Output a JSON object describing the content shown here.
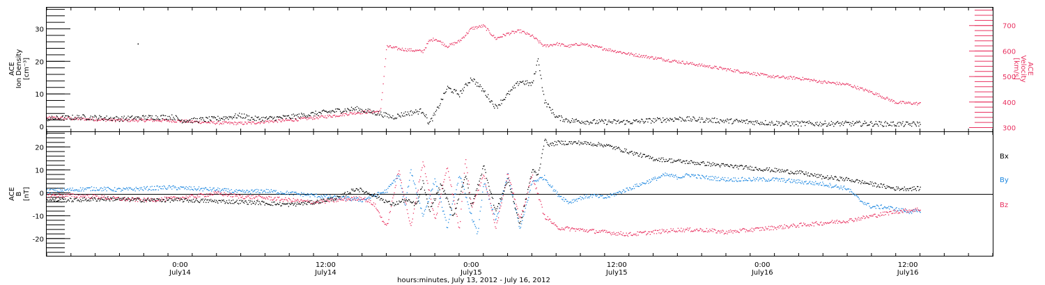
{
  "colors": {
    "black": "#000000",
    "pink": "#e8305f",
    "blue": "#1a86e0"
  },
  "xaxis": {
    "hours_range": [
      0,
      78
    ],
    "ticks": [
      {
        "hour": 11,
        "time": "0:00",
        "day": "July14"
      },
      {
        "hour": 23,
        "time": "12:00",
        "day": "July14"
      },
      {
        "hour": 35,
        "time": "0:00",
        "day": "July15"
      },
      {
        "hour": 47,
        "time": "12:00",
        "day": "July15"
      },
      {
        "hour": 59,
        "time": "0:00",
        "day": "July16"
      },
      {
        "hour": 71,
        "time": "12:00",
        "day": "July16"
      }
    ],
    "label": "hours:minutes, July 13, 2012 - July 16, 2012"
  },
  "chart_data": [
    {
      "type": "scatter",
      "panel": "top",
      "left_axis": {
        "label_lines": [
          "ACE",
          "Ion Density",
          "[cm⁻³]"
        ],
        "ylim": [
          -1.5,
          36.5
        ],
        "ticks": [
          0,
          10,
          20,
          30
        ],
        "tick_labels": [
          "0",
          "10",
          "20",
          "30"
        ]
      },
      "right_axis": {
        "label_lines": [
          "ACE",
          "Velocity",
          "[km/s]"
        ],
        "ylim": [
          285,
          770
        ],
        "ticks": [
          300,
          400,
          500,
          600,
          700
        ],
        "tick_labels": [
          "300",
          "400",
          "500",
          "600",
          "700"
        ]
      },
      "series": [
        {
          "key": "density",
          "axis": "left",
          "color": "#000000",
          "x": [
            0,
            3,
            6,
            9,
            10.5,
            11,
            12,
            14,
            15,
            16,
            17,
            18,
            20,
            22,
            24,
            25.5,
            27.5,
            28.5,
            29.5,
            31,
            31.5,
            32,
            33,
            34,
            35,
            36,
            37,
            38,
            39,
            40,
            40.5,
            41,
            42,
            43,
            45,
            48,
            50,
            52,
            55,
            58,
            61,
            64,
            66,
            68,
            71,
            72
          ],
          "y": [
            2.5,
            3,
            2.5,
            3,
            3,
            2,
            2,
            2.5,
            3,
            3.5,
            2.5,
            2.5,
            3,
            4,
            5,
            5.5,
            4,
            3,
            4,
            5,
            1,
            4,
            12,
            10,
            15,
            11,
            6,
            10,
            14,
            13,
            21,
            8,
            3,
            2,
            1.5,
            1.5,
            2,
            2.5,
            2,
            1.5,
            1,
            1,
            1,
            1,
            0.8,
            1
          ]
        },
        {
          "key": "velocity",
          "axis": "right",
          "color": "#e8305f",
          "x": [
            0,
            3,
            6,
            9,
            10.5,
            12,
            14,
            16,
            17,
            18,
            20,
            22,
            24,
            25.5,
            27.5,
            28,
            29,
            31,
            31.5,
            32,
            33,
            34,
            35,
            36,
            37,
            38,
            39,
            40,
            41,
            42,
            43,
            44,
            46,
            48,
            50,
            52,
            54,
            56,
            58,
            60,
            62,
            64,
            66,
            68,
            69,
            70,
            72
          ],
          "y": [
            340,
            335,
            330,
            330,
            328,
            325,
            320,
            318,
            320,
            325,
            330,
            340,
            350,
            360,
            365,
            620,
            610,
            600,
            640,
            650,
            620,
            640,
            690,
            700,
            650,
            670,
            680,
            660,
            620,
            630,
            620,
            630,
            610,
            590,
            575,
            560,
            545,
            530,
            515,
            500,
            495,
            480,
            470,
            440,
            420,
            400,
            395
          ]
        }
      ],
      "annotations": [
        {
          "x": 7.5,
          "y": 25.5
        }
      ]
    },
    {
      "type": "scatter",
      "panel": "bottom",
      "left_axis": {
        "label_lines": [
          "ACE",
          "B",
          "[nT]"
        ],
        "ylim": [
          -27.5,
          26.5
        ],
        "ticks": [
          -20,
          -10,
          0,
          10,
          20
        ],
        "tick_labels": [
          "-20",
          "-10",
          "0",
          "10",
          "20"
        ]
      },
      "legend_position": "right",
      "series": [
        {
          "name": "Bx",
          "color": "#000000",
          "x": [
            0,
            2,
            5,
            8,
            11,
            14,
            17,
            20,
            22,
            24,
            25.5,
            27,
            28.5,
            29.5,
            30.5,
            31,
            31.5,
            32.5,
            33.5,
            34.5,
            35,
            36,
            37,
            38,
            39,
            40,
            40.5,
            41,
            41.5,
            42,
            44,
            46,
            48,
            50,
            52,
            54,
            56,
            58,
            60,
            62,
            64,
            66,
            68,
            70,
            72
          ],
          "y": [
            -3,
            -3,
            -2.5,
            -3,
            -3,
            -3.5,
            -4,
            -5,
            -4,
            -2,
            2,
            -1,
            -5,
            -3,
            -5,
            5,
            -8,
            4,
            -10,
            8,
            -6,
            12,
            -8,
            6,
            -14,
            10,
            8,
            23,
            21,
            22,
            22,
            21,
            18,
            15,
            14,
            13,
            12,
            11,
            10,
            9,
            7,
            6,
            4,
            2,
            2
          ]
        },
        {
          "name": "By",
          "color": "#1a86e0",
          "x": [
            0,
            2,
            4,
            6,
            8,
            10,
            12,
            14,
            16,
            18,
            20,
            22,
            24,
            26,
            28,
            29,
            29.5,
            30,
            31,
            32,
            33,
            34,
            35,
            35.5,
            36,
            37,
            38,
            39,
            40,
            41,
            42,
            43,
            44,
            45,
            46,
            47,
            48,
            49,
            50,
            51,
            52,
            53,
            54,
            56,
            58,
            60,
            62,
            64,
            66,
            67,
            68,
            69,
            70,
            71,
            72
          ],
          "y": [
            1,
            1.5,
            2,
            1.5,
            2,
            2.5,
            2,
            1.5,
            0.5,
            1,
            0,
            -1,
            -2,
            -3,
            1,
            8,
            -6,
            10,
            -10,
            6,
            -15,
            8,
            -10,
            -18,
            5,
            -12,
            8,
            -16,
            5,
            7,
            0,
            -4,
            -2,
            -1,
            -2,
            0,
            2,
            4,
            6,
            8,
            7,
            8,
            7,
            6,
            6,
            6,
            5,
            4,
            2,
            -3,
            -6,
            -6,
            -7,
            -8,
            -8
          ]
        },
        {
          "name": "Bz",
          "color": "#e8305f",
          "x": [
            0,
            2,
            4,
            6,
            8,
            10,
            12,
            14,
            16,
            18,
            20,
            22,
            24,
            26,
            27,
            28,
            29,
            30,
            31,
            32,
            33,
            34,
            34.5,
            35,
            36,
            37,
            38,
            39,
            40,
            41,
            41.5,
            42,
            44,
            46,
            48,
            50,
            52,
            54,
            56,
            58,
            60,
            62,
            64,
            66,
            68,
            70,
            72
          ],
          "y": [
            -1,
            -1,
            -1.5,
            -2.5,
            -3,
            -2.5,
            -1.5,
            0,
            -1.5,
            -2,
            -3,
            -4,
            -3,
            -2,
            -5,
            -15,
            10,
            -15,
            14,
            -12,
            12,
            -16,
            16,
            -6,
            8,
            -15,
            9,
            -12,
            8,
            -10,
            -12,
            -15,
            -16,
            -17,
            -18,
            -17,
            -16,
            -16,
            -17,
            -16,
            -15,
            -14,
            -13,
            -12,
            -10,
            -8,
            -7
          ]
        }
      ]
    }
  ]
}
